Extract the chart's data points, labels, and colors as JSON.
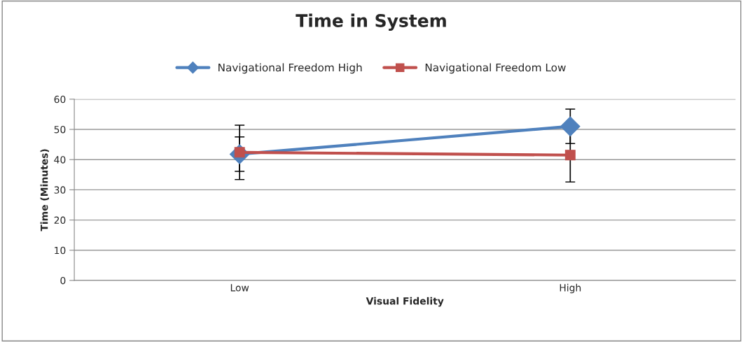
{
  "chart_data": {
    "type": "line",
    "title": "Time in System",
    "xlabel": "Visual Fidelity",
    "ylabel": "Time (Minutes)",
    "categories": [
      "Low",
      "High"
    ],
    "series": [
      {
        "name": "Navigational Freedom High",
        "color": "#4f81bd",
        "values": [
          41.8,
          51.0
        ],
        "errors": [
          5.7,
          5.7
        ],
        "marker": "diamond"
      },
      {
        "name": "Navigational Freedom Low",
        "color": "#c0504d",
        "values": [
          42.4,
          41.5
        ],
        "errors": [
          9.0,
          8.9
        ],
        "marker": "square"
      }
    ],
    "ylim": [
      0,
      60
    ],
    "yticks": [
      0,
      10,
      20,
      30,
      40,
      50,
      60
    ],
    "grid": "y",
    "legend": "top"
  }
}
